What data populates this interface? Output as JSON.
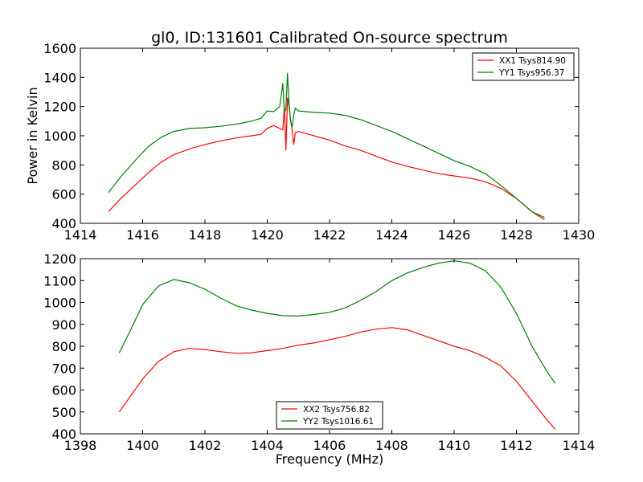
{
  "figure": {
    "title": "gl0, ID:131601 Calibrated On-source spectrum",
    "xlabel": "Frequency (MHz)"
  },
  "chart_data": [
    {
      "type": "line",
      "title": "gl0, ID:131601 Calibrated On-source spectrum",
      "xlabel": "",
      "ylabel": "Power in Kelvin",
      "xlim": [
        1414,
        1430
      ],
      "ylim": [
        400,
        1600
      ],
      "xticks": [
        "1414",
        "1416",
        "1418",
        "1420",
        "1422",
        "1424",
        "1426",
        "1428",
        "1430"
      ],
      "yticks": [
        "400",
        "600",
        "800",
        "1000",
        "1200",
        "1400",
        "1600"
      ],
      "grid": false,
      "legend_position": "top-right",
      "series": [
        {
          "name": "XX1 Tsys814.90",
          "color": "#ff0000",
          "x": [
            1414.9,
            1415.3,
            1415.8,
            1416.2,
            1416.6,
            1417.0,
            1417.5,
            1418.0,
            1418.5,
            1419.0,
            1419.5,
            1419.8,
            1420.0,
            1420.2,
            1420.4,
            1420.5,
            1420.55,
            1420.6,
            1420.65,
            1420.7,
            1420.75,
            1420.8,
            1420.85,
            1420.9,
            1421.0,
            1421.5,
            1422.0,
            1422.5,
            1423.0,
            1423.5,
            1424.0,
            1424.5,
            1425.0,
            1425.5,
            1426.0,
            1426.5,
            1427.0,
            1427.5,
            1428.0,
            1428.5,
            1428.9
          ],
          "y": [
            480,
            570,
            670,
            750,
            820,
            870,
            910,
            940,
            965,
            985,
            1000,
            1010,
            1050,
            1070,
            1050,
            1040,
            1200,
            900,
            1260,
            1200,
            1100,
            1040,
            940,
            1020,
            1030,
            1000,
            970,
            930,
            900,
            860,
            820,
            790,
            765,
            740,
            725,
            710,
            685,
            640,
            570,
            480,
            425
          ]
        },
        {
          "name": "YY1 Tsys956.37",
          "color": "#008000",
          "x": [
            1414.9,
            1415.3,
            1415.8,
            1416.2,
            1416.6,
            1417.0,
            1417.5,
            1418.0,
            1418.5,
            1419.0,
            1419.5,
            1419.8,
            1420.0,
            1420.2,
            1420.4,
            1420.5,
            1420.55,
            1420.6,
            1420.65,
            1420.7,
            1420.75,
            1420.8,
            1420.85,
            1420.9,
            1421.0,
            1421.5,
            1422.0,
            1422.5,
            1423.0,
            1423.5,
            1424.0,
            1424.5,
            1425.0,
            1425.5,
            1426.0,
            1426.5,
            1427.0,
            1427.5,
            1428.0,
            1428.5,
            1428.9
          ],
          "y": [
            610,
            720,
            840,
            930,
            990,
            1030,
            1050,
            1055,
            1065,
            1080,
            1100,
            1120,
            1170,
            1165,
            1200,
            1360,
            1160,
            1180,
            1430,
            1220,
            1100,
            1060,
            1140,
            1190,
            1170,
            1160,
            1155,
            1140,
            1110,
            1070,
            1030,
            980,
            930,
            880,
            830,
            790,
            740,
            660,
            570,
            480,
            440
          ]
        }
      ]
    },
    {
      "type": "line",
      "title": "",
      "xlabel": "Frequency (MHz)",
      "ylabel": "",
      "xlim": [
        1398,
        1414
      ],
      "ylim": [
        400,
        1200
      ],
      "xticks": [
        "1398",
        "1400",
        "1402",
        "1404",
        "1406",
        "1408",
        "1410",
        "1412",
        "1414"
      ],
      "yticks": [
        "400",
        "500",
        "600",
        "700",
        "800",
        "900",
        "1000",
        "1100",
        "1200"
      ],
      "grid": false,
      "legend_position": "bottom-center",
      "series": [
        {
          "name": "XX2 Tsys756.82",
          "color": "#ff0000",
          "x": [
            1399.25,
            1399.6,
            1400.0,
            1400.5,
            1401.0,
            1401.5,
            1402.0,
            1402.5,
            1403.0,
            1403.5,
            1404.0,
            1404.5,
            1405.0,
            1405.5,
            1406.0,
            1406.5,
            1407.0,
            1407.5,
            1408.0,
            1408.5,
            1409.0,
            1409.5,
            1410.0,
            1410.5,
            1411.0,
            1411.5,
            1412.0,
            1412.5,
            1413.0,
            1413.25
          ],
          "y": [
            500,
            570,
            650,
            730,
            775,
            790,
            785,
            775,
            768,
            770,
            780,
            790,
            805,
            815,
            830,
            845,
            865,
            878,
            885,
            875,
            850,
            825,
            800,
            780,
            750,
            710,
            640,
            550,
            460,
            420
          ]
        },
        {
          "name": "YY2 Tsys1016.61",
          "color": "#008000",
          "x": [
            1399.25,
            1399.6,
            1400.0,
            1400.5,
            1401.0,
            1401.5,
            1402.0,
            1402.5,
            1403.0,
            1403.5,
            1404.0,
            1404.5,
            1405.0,
            1405.5,
            1406.0,
            1406.5,
            1407.0,
            1407.5,
            1408.0,
            1408.5,
            1409.0,
            1409.5,
            1410.0,
            1410.5,
            1411.0,
            1411.5,
            1412.0,
            1412.5,
            1413.0,
            1413.25
          ],
          "y": [
            770,
            870,
            990,
            1075,
            1105,
            1090,
            1060,
            1020,
            985,
            965,
            950,
            940,
            938,
            945,
            955,
            975,
            1010,
            1050,
            1100,
            1135,
            1160,
            1180,
            1190,
            1180,
            1145,
            1070,
            950,
            800,
            680,
            630
          ]
        }
      ]
    }
  ]
}
